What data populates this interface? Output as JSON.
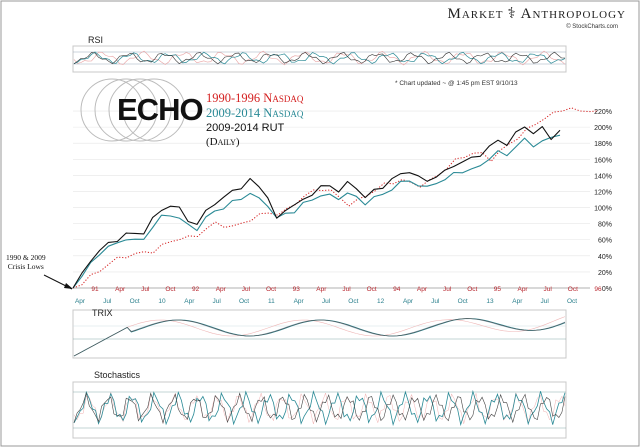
{
  "brand": {
    "left": "Market",
    "right": "Anthropology",
    "source": "© StockCharts.com"
  },
  "update_note": "* Chart updated ~ @ 1:45 pm EST 9/10/13",
  "logo_text": "ECHO",
  "crisis_label": [
    "1990 & 2009",
    "Crisis Lows"
  ],
  "panels": {
    "rsi": "RSI",
    "trix": "TRIX",
    "stochastics": "Stochastics"
  },
  "colors": {
    "nasdaq_1990": "#d42020",
    "nasdaq_2009": "#2a8a96",
    "rut_2009": "#111111",
    "red_tick": "#b8262e",
    "teal_tick": "#2a7f8c",
    "grid": "#c8c8c8"
  },
  "chart_data": {
    "type": "line",
    "title": "",
    "y_ticks": [
      "0%",
      "20%",
      "40%",
      "60%",
      "80%",
      "100%",
      "120%",
      "140%",
      "160%",
      "180%",
      "200%",
      "220%"
    ],
    "ylim": [
      0,
      230
    ],
    "x_ticks_top": [
      "91",
      "Apr",
      "Jul",
      "Oct",
      "92",
      "Apr",
      "Jul",
      "Oct",
      "93",
      "Apr",
      "Jul",
      "Oct",
      "94",
      "Apr",
      "Jul",
      "Oct",
      "95",
      "Apr",
      "Jul",
      "Oct",
      "96"
    ],
    "x_ticks_bottom": [
      "Apr",
      "Jul",
      "Oct",
      "10",
      "Apr",
      "Jul",
      "Oct",
      "11",
      "Apr",
      "Jul",
      "Oct",
      "12",
      "Apr",
      "Jul",
      "Oct",
      "13",
      "Apr",
      "Jul",
      "Oct"
    ],
    "series": [
      {
        "name": "1990-1996 Nasdaq",
        "color": "#d42020",
        "style": "dotted",
        "values": [
          0,
          6,
          14,
          22,
          30,
          36,
          40,
          42,
          44,
          46,
          52,
          58,
          62,
          62,
          66,
          74,
          80,
          78,
          76,
          80,
          86,
          90,
          94,
          92,
          96,
          106,
          114,
          120,
          124,
          120,
          112,
          104,
          108,
          116,
          122,
          128,
          132,
          134,
          130,
          128,
          132,
          140,
          150,
          158,
          164,
          168,
          166,
          160,
          170,
          178,
          188,
          196,
          204,
          212,
          216,
          222,
          224,
          218,
          222,
          220
        ]
      },
      {
        "name": "2009-2014 Nasdaq",
        "color": "#2a8a96",
        "style": "solid",
        "values": [
          0,
          14,
          30,
          44,
          50,
          56,
          62,
          58,
          62,
          76,
          88,
          92,
          86,
          78,
          74,
          86,
          96,
          100,
          106,
          112,
          118,
          110,
          104,
          86,
          92,
          96,
          104,
          110,
          116,
          114,
          112,
          118,
          112,
          106,
          112,
          116,
          124,
          130,
          134,
          128,
          124,
          132,
          134,
          142,
          146,
          146,
          152,
          162,
          168,
          166,
          176,
          184,
          178,
          182,
          186,
          190
        ]
      },
      {
        "name": "2009-2014 RUT",
        "color": "#111111",
        "style": "solid",
        "values": [
          0,
          16,
          34,
          48,
          54,
          60,
          68,
          66,
          70,
          86,
          96,
          104,
          98,
          84,
          80,
          94,
          106,
          112,
          120,
          126,
          134,
          126,
          114,
          84,
          98,
          104,
          108,
          118,
          126,
          126,
          122,
          130,
          124,
          114,
          120,
          126,
          136,
          140,
          146,
          138,
          132,
          140,
          144,
          152,
          158,
          160,
          166,
          176,
          182,
          180,
          192,
          200,
          194,
          198,
          186,
          196
        ]
      }
    ]
  }
}
